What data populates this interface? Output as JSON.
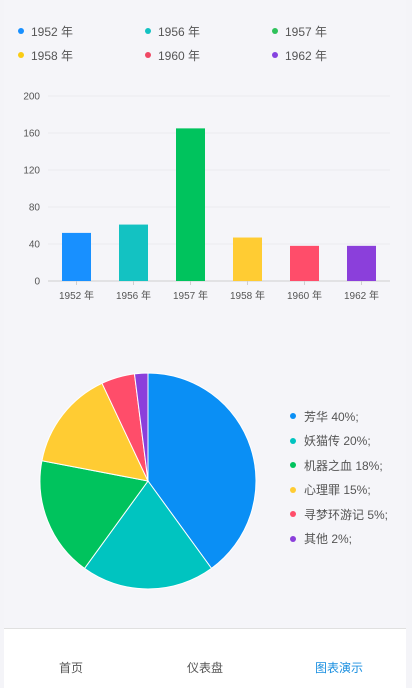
{
  "legend": [
    {
      "label": "1952 年",
      "color": "#1890ff"
    },
    {
      "label": "1956 年",
      "color": "#13c2c2"
    },
    {
      "label": "1957 年",
      "color": "#2fc25b"
    },
    {
      "label": "1958 年",
      "color": "#facc14"
    },
    {
      "label": "1960 年",
      "color": "#f04864"
    },
    {
      "label": "1962 年",
      "color": "#8543e0"
    }
  ],
  "chart_data": [
    {
      "type": "bar",
      "categories": [
        "1952 年",
        "1956 年",
        "1957 年",
        "1958 年",
        "1960 年",
        "1962 年"
      ],
      "values": [
        52,
        61,
        165,
        47,
        38,
        38
      ],
      "colors": [
        "#1890ff",
        "#13c2c2",
        "#00c35d",
        "#ffcc33",
        "#ff4d6a",
        "#8b3fdb"
      ],
      "yticks": [
        0,
        40,
        80,
        120,
        160,
        200
      ],
      "ylim": [
        0,
        200
      ],
      "grid": true
    },
    {
      "type": "pie",
      "labels": [
        "芳华",
        "妖猫传",
        "机器之血",
        "心理罪",
        "寻梦环游记",
        "其他"
      ],
      "values": [
        40,
        20,
        18,
        15,
        5,
        2
      ],
      "colors": [
        "#0a8ff5",
        "#00c4c0",
        "#00c35d",
        "#ffcc33",
        "#ff4d6a",
        "#8b3fdb"
      ],
      "legend_labels": [
        "芳华  40%;",
        "妖猫传  20%;",
        "机器之血  18%;",
        "心理罪  15%;",
        "寻梦环游记  5%;",
        "其他  2%;"
      ],
      "legend_position": "right"
    }
  ],
  "tabs": [
    {
      "label": "首页",
      "active": false
    },
    {
      "label": "仪表盘",
      "active": false
    },
    {
      "label": "图表演示",
      "active": true
    }
  ]
}
